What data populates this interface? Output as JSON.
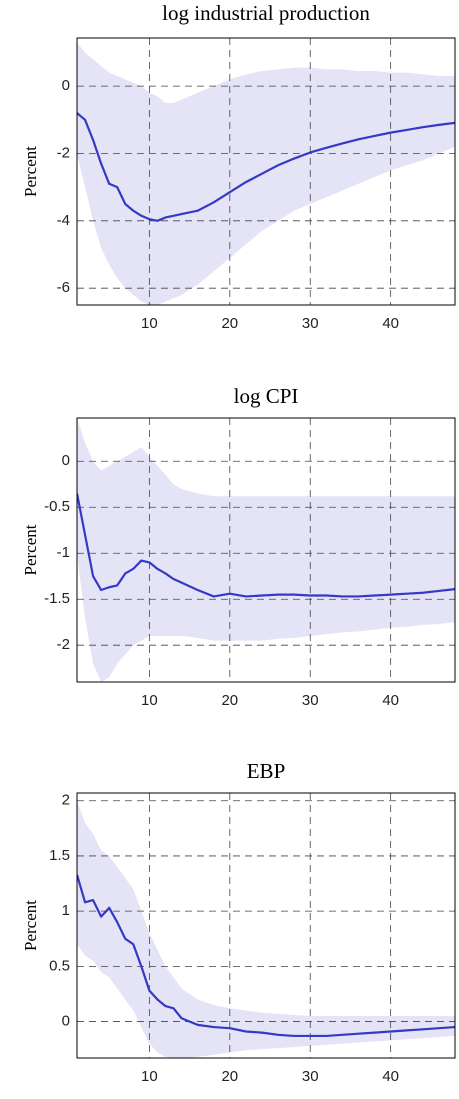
{
  "chart_data": [
    {
      "type": "line",
      "title": "log industrial production",
      "ylabel": "Percent",
      "color": "#3539c4",
      "band_color": "#e4e4f6",
      "grid": true,
      "x": [
        1,
        2,
        3,
        4,
        5,
        6,
        7,
        8,
        9,
        10,
        11,
        12,
        13,
        14,
        16,
        18,
        20,
        22,
        24,
        26,
        28,
        30,
        32,
        34,
        36,
        38,
        40,
        42,
        44,
        46,
        48
      ],
      "values": [
        -0.8,
        -1.0,
        -1.6,
        -2.3,
        -2.9,
        -3.0,
        -3.5,
        -3.7,
        -3.85,
        -3.95,
        -4.0,
        -3.9,
        -3.85,
        -3.8,
        -3.7,
        -3.45,
        -3.15,
        -2.85,
        -2.6,
        -2.35,
        -2.15,
        -1.97,
        -1.83,
        -1.7,
        -1.58,
        -1.48,
        -1.38,
        -1.3,
        -1.22,
        -1.15,
        -1.09
      ],
      "upper": [
        1.3,
        1.0,
        0.8,
        0.6,
        0.4,
        0.3,
        0.2,
        0.1,
        0.0,
        -0.2,
        -0.3,
        -0.5,
        -0.5,
        -0.4,
        -0.2,
        0.0,
        0.2,
        0.35,
        0.45,
        0.5,
        0.55,
        0.55,
        0.5,
        0.5,
        0.45,
        0.45,
        0.4,
        0.4,
        0.35,
        0.3,
        0.3
      ],
      "lower": [
        -2.0,
        -3.0,
        -4.0,
        -4.8,
        -5.3,
        -5.7,
        -6.0,
        -6.2,
        -6.4,
        -6.5,
        -6.5,
        -6.4,
        -6.3,
        -6.2,
        -5.9,
        -5.5,
        -5.1,
        -4.7,
        -4.3,
        -4.0,
        -3.7,
        -3.5,
        -3.3,
        -3.1,
        -2.9,
        -2.7,
        -2.5,
        -2.35,
        -2.2,
        -2.0,
        -1.8
      ],
      "xlim": [
        1,
        48
      ],
      "ylim": [
        -6.5,
        1.43
      ],
      "xticks": [
        10,
        20,
        30,
        40
      ],
      "yticks": [
        -6,
        -4,
        -2,
        0
      ]
    },
    {
      "type": "line",
      "title": "log CPI",
      "ylabel": "Percent",
      "color": "#3539c4",
      "band_color": "#e4e4f6",
      "grid": true,
      "x": [
        1,
        2,
        3,
        4,
        5,
        6,
        7,
        8,
        9,
        10,
        11,
        12,
        13,
        14,
        16,
        18,
        20,
        22,
        24,
        26,
        28,
        30,
        32,
        34,
        36,
        38,
        40,
        42,
        44,
        46,
        48
      ],
      "values": [
        -0.35,
        -0.8,
        -1.25,
        -1.4,
        -1.37,
        -1.35,
        -1.22,
        -1.17,
        -1.08,
        -1.1,
        -1.17,
        -1.22,
        -1.28,
        -1.32,
        -1.4,
        -1.47,
        -1.44,
        -1.47,
        -1.46,
        -1.45,
        -1.45,
        -1.46,
        -1.46,
        -1.47,
        -1.47,
        -1.46,
        -1.45,
        -1.44,
        -1.43,
        -1.41,
        -1.39
      ],
      "upper": [
        0.47,
        0.2,
        0.0,
        -0.1,
        -0.05,
        0.0,
        0.05,
        0.1,
        0.15,
        0.05,
        -0.05,
        -0.15,
        -0.25,
        -0.3,
        -0.35,
        -0.38,
        -0.38,
        -0.38,
        -0.38,
        -0.38,
        -0.38,
        -0.38,
        -0.38,
        -0.38,
        -0.38,
        -0.38,
        -0.38,
        -0.38,
        -0.38,
        -0.38,
        -0.38
      ],
      "lower": [
        -1.0,
        -1.7,
        -2.2,
        -2.4,
        -2.35,
        -2.2,
        -2.1,
        -2.0,
        -1.95,
        -1.9,
        -1.9,
        -1.9,
        -1.9,
        -1.9,
        -1.92,
        -1.95,
        -1.95,
        -1.95,
        -1.95,
        -1.93,
        -1.92,
        -1.9,
        -1.88,
        -1.86,
        -1.85,
        -1.83,
        -1.81,
        -1.8,
        -1.78,
        -1.77,
        -1.75
      ],
      "xlim": [
        1,
        48
      ],
      "ylim": [
        -2.4,
        0.47
      ],
      "xticks": [
        10,
        20,
        30,
        40
      ],
      "yticks": [
        -2,
        -1.5,
        -1,
        -0.5,
        0
      ]
    },
    {
      "type": "line",
      "title": "EBP",
      "ylabel": "Percent",
      "color": "#3539c4",
      "band_color": "#e4e4f6",
      "grid": true,
      "x": [
        1,
        2,
        3,
        4,
        5,
        6,
        7,
        8,
        9,
        10,
        11,
        12,
        13,
        14,
        16,
        18,
        20,
        22,
        24,
        26,
        28,
        30,
        32,
        34,
        36,
        38,
        40,
        42,
        44,
        46,
        48
      ],
      "values": [
        1.33,
        1.08,
        1.1,
        0.95,
        1.03,
        0.9,
        0.75,
        0.7,
        0.5,
        0.28,
        0.2,
        0.14,
        0.12,
        0.03,
        -0.03,
        -0.05,
        -0.06,
        -0.09,
        -0.1,
        -0.12,
        -0.13,
        -0.13,
        -0.13,
        -0.12,
        -0.11,
        -0.1,
        -0.09,
        -0.08,
        -0.07,
        -0.06,
        -0.05
      ],
      "upper": [
        2.0,
        1.8,
        1.7,
        1.55,
        1.5,
        1.4,
        1.3,
        1.2,
        1.0,
        0.8,
        0.65,
        0.5,
        0.4,
        0.3,
        0.2,
        0.15,
        0.12,
        0.1,
        0.08,
        0.07,
        0.06,
        0.05,
        0.05,
        0.05,
        0.05,
        0.05,
        0.05,
        0.05,
        0.05,
        0.05,
        0.05
      ],
      "lower": [
        0.7,
        0.6,
        0.55,
        0.45,
        0.4,
        0.3,
        0.2,
        0.1,
        -0.05,
        -0.2,
        -0.28,
        -0.32,
        -0.33,
        -0.33,
        -0.32,
        -0.3,
        -0.28,
        -0.26,
        -0.25,
        -0.24,
        -0.23,
        -0.22,
        -0.21,
        -0.2,
        -0.19,
        -0.18,
        -0.17,
        -0.16,
        -0.15,
        -0.14,
        -0.13
      ],
      "xlim": [
        1,
        48
      ],
      "ylim": [
        -0.33,
        2.07
      ],
      "xticks": [
        10,
        20,
        30,
        40
      ],
      "yticks": [
        0,
        0.5,
        1,
        1.5,
        2
      ]
    }
  ]
}
